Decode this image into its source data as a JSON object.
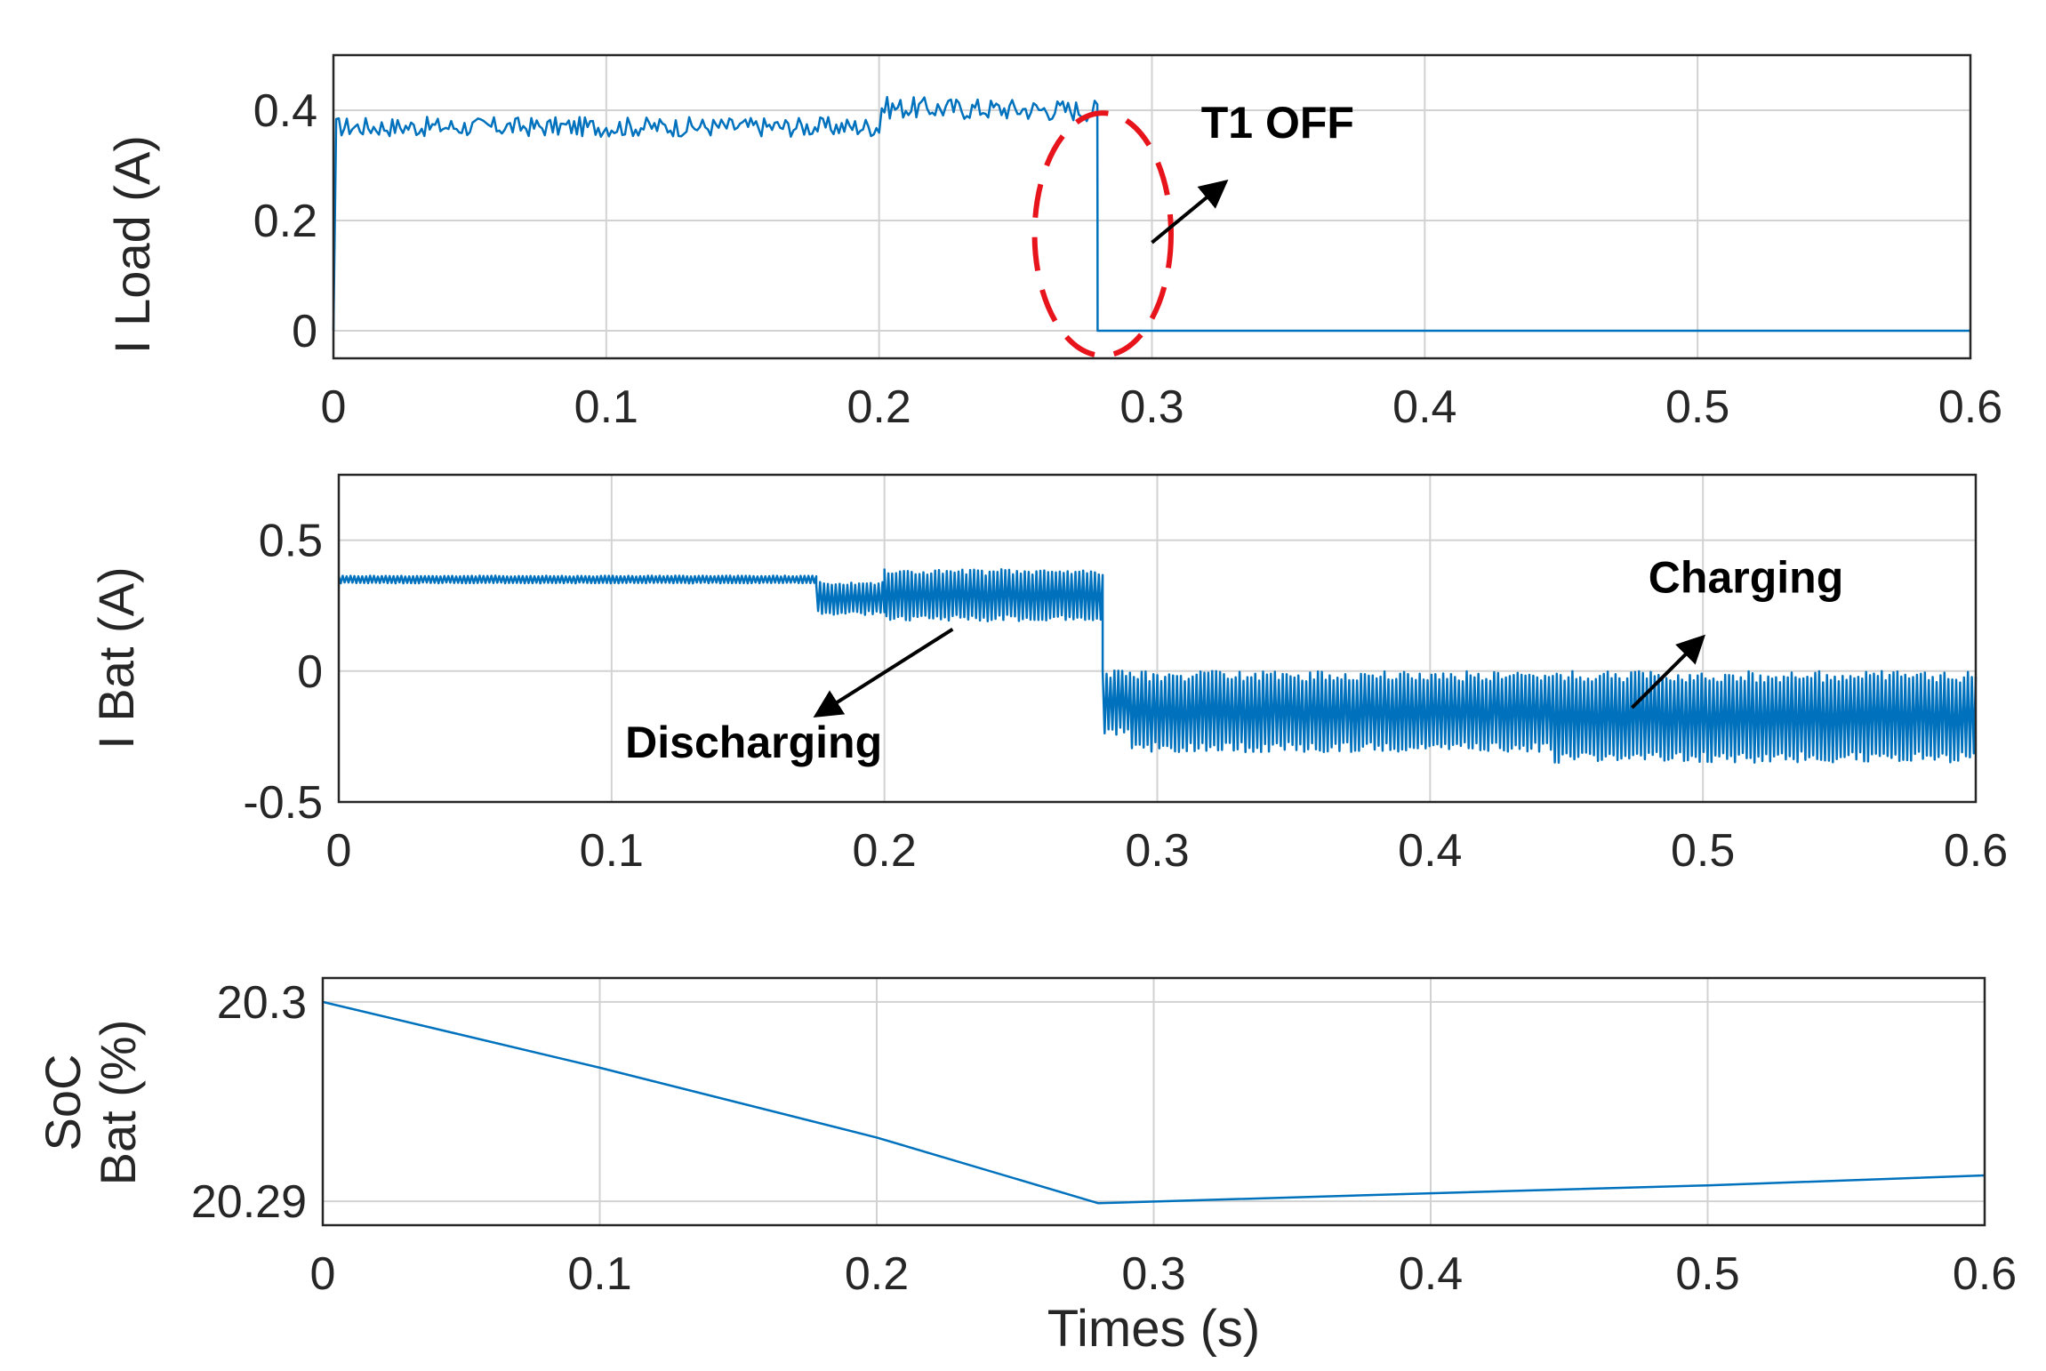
{
  "chart_data": [
    {
      "type": "line",
      "ylabel": "I Load (A)",
      "xlim": [
        0,
        0.6
      ],
      "ylim": [
        -0.05,
        0.5
      ],
      "x_ticks": [
        "0",
        "0.1",
        "0.2",
        "0.3",
        "0.4",
        "0.5",
        "0.6"
      ],
      "y_ticks": [
        {
          "value": 0,
          "label": "0"
        },
        {
          "value": 0.2,
          "label": "0.2"
        },
        {
          "value": 0.4,
          "label": "0.4"
        }
      ],
      "grid": true,
      "series": [
        {
          "color": "#0072BD",
          "x": [
            0,
            0.001,
            0.1,
            0.2,
            0.201,
            0.28,
            0.2801,
            0.6
          ],
          "y": [
            0.0,
            0.37,
            0.37,
            0.37,
            0.405,
            0.4,
            0.0,
            0.0
          ],
          "noise_amplitude": [
            0,
            0.018,
            0.018,
            0.018,
            0.02,
            0.02,
            0,
            0
          ]
        }
      ],
      "annotations": [
        {
          "text": "T1 OFF",
          "x": 0.318,
          "y": 0.35,
          "arrow_from": [
            0.3,
            0.16
          ],
          "arrow_to": [
            0.327,
            0.27
          ]
        }
      ],
      "highlight_ellipse": {
        "cx": 0.282,
        "cy": 0.175,
        "rx": 0.025,
        "ry": 0.22,
        "color": "#e8141c"
      }
    },
    {
      "type": "line",
      "ylabel": "I Bat (A)",
      "xlim": [
        0,
        0.6
      ],
      "ylim": [
        -0.5,
        0.75
      ],
      "x_ticks": [
        "0",
        "0.1",
        "0.2",
        "0.3",
        "0.4",
        "0.5",
        "0.6"
      ],
      "y_ticks": [
        {
          "value": -0.5,
          "label": "-0.5"
        },
        {
          "value": 0,
          "label": "0"
        },
        {
          "value": 0.5,
          "label": "0.5"
        }
      ],
      "grid": true,
      "series": [
        {
          "color": "#0072BD",
          "segments": [
            {
              "x": [
                0,
                0.175
              ],
              "center": 0.35,
              "spread": 0.03
            },
            {
              "x": [
                0.175,
                0.2
              ],
              "center": 0.28,
              "spread": 0.13
            },
            {
              "x": [
                0.2,
                0.28
              ],
              "center": 0.29,
              "spread": 0.2
            },
            {
              "x": [
                0.28,
                0.29
              ],
              "center": -0.12,
              "spread": 0.25
            },
            {
              "x": [
                0.29,
                0.445
              ],
              "center": -0.155,
              "spread": 0.31
            },
            {
              "x": [
                0.445,
                0.6
              ],
              "center": -0.175,
              "spread": 0.35
            }
          ]
        }
      ],
      "annotations": [
        {
          "text": "Discharging",
          "x": 0.105,
          "y": -0.33,
          "arrow_from": [
            0.225,
            0.16
          ],
          "arrow_to": [
            0.175,
            -0.17
          ]
        },
        {
          "text": "Charging",
          "x": 0.48,
          "y": 0.3,
          "arrow_from": [
            0.474,
            -0.14
          ],
          "arrow_to": [
            0.5,
            0.13
          ]
        }
      ]
    },
    {
      "type": "line",
      "ylabel": "SoC\nBat (%)",
      "xlabel": "Times (s)",
      "xlim": [
        0,
        0.6
      ],
      "ylim": [
        20.2888,
        20.3012
      ],
      "x_ticks": [
        "0",
        "0.1",
        "0.2",
        "0.3",
        "0.4",
        "0.5",
        "0.6"
      ],
      "y_ticks": [
        {
          "value": 20.29,
          "label": "20.29"
        },
        {
          "value": 20.3,
          "label": "20.3"
        }
      ],
      "grid": true,
      "series": [
        {
          "color": "#0072BD",
          "x": [
            0,
            0.1,
            0.2,
            0.28,
            0.4,
            0.5,
            0.6
          ],
          "y": [
            20.3,
            20.2967,
            20.2932,
            20.2899,
            20.2904,
            20.2908,
            20.2913
          ]
        }
      ]
    }
  ]
}
